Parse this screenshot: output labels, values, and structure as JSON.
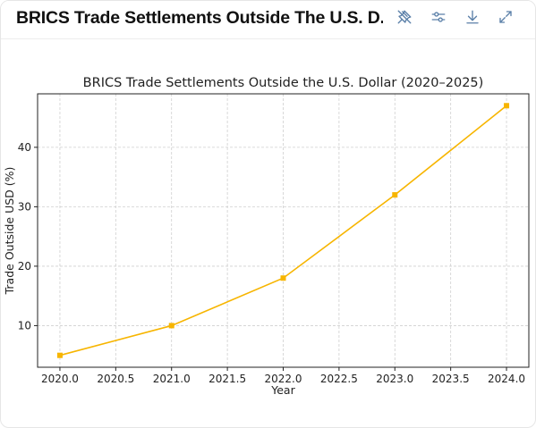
{
  "header": {
    "title": "BRICS Trade Settlements Outside The U.S. D...",
    "icons": [
      "pin-off-icon",
      "sliders-icon",
      "download-icon",
      "expand-icon"
    ]
  },
  "colors": {
    "series": "#f7b500",
    "grid": "#cfcfcf",
    "icon": "#5a7fa8"
  },
  "chart_data": {
    "type": "line",
    "title": "BRICS Trade Settlements Outside the U.S. Dollar (2020–2025)",
    "xlabel": "Year",
    "ylabel": "Trade Outside USD (%)",
    "x": [
      2020,
      2021,
      2022,
      2023,
      2024
    ],
    "series": [
      {
        "values": [
          5,
          10,
          18,
          32,
          47
        ]
      }
    ],
    "xlim": [
      2019.8,
      2024.2
    ],
    "ylim": [
      3,
      49
    ],
    "xticks": [
      "2020.0",
      "2020.5",
      "2021.0",
      "2021.5",
      "2022.0",
      "2022.5",
      "2023.0",
      "2023.5",
      "2024.0"
    ],
    "xtick_values": [
      2020.0,
      2020.5,
      2021.0,
      2021.5,
      2022.0,
      2022.5,
      2023.0,
      2023.5,
      2024.0
    ],
    "yticks": [
      "10",
      "20",
      "30",
      "40"
    ],
    "ytick_values": [
      10,
      20,
      30,
      40
    ],
    "grid": true,
    "marker": "square"
  }
}
